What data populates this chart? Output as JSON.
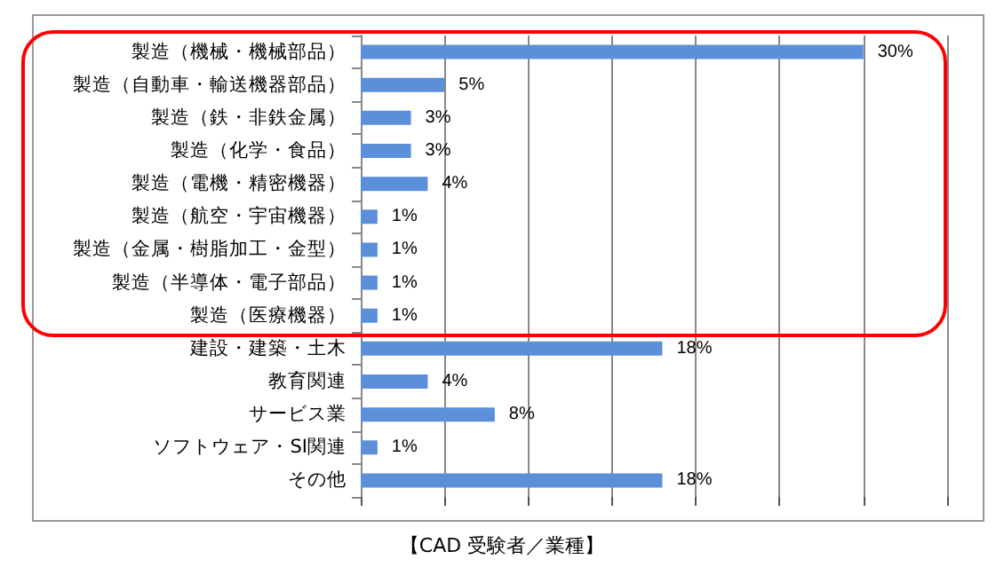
{
  "chart_data": {
    "type": "bar",
    "orientation": "horizontal",
    "categories": [
      "製造（機械・機械部品）",
      "製造（自動車・輸送機器部品）",
      "製造（鉄・非鉄金属）",
      "製造（化学・食品）",
      "製造（電機・精密機器）",
      "製造（航空・宇宙機器）",
      "製造（金属・樹脂加工・金型）",
      "製造（半導体・電子部品）",
      "製造（医療機器）",
      "建設・建築・土木",
      "教育関連",
      "サービス業",
      "ソフトウェア・SI関連",
      "その他"
    ],
    "values": [
      30,
      5,
      3,
      3,
      4,
      1,
      1,
      1,
      1,
      18,
      4,
      8,
      1,
      18
    ],
    "value_labels": [
      "30%",
      "5%",
      "3%",
      "3%",
      "4%",
      "1%",
      "1%",
      "1%",
      "1%",
      "18%",
      "4%",
      "8%",
      "1%",
      "18%"
    ],
    "color": "#5b8fd9",
    "xlim": [
      0,
      35
    ],
    "xticks": [
      {
        "value": 0,
        "label": null
      },
      {
        "value": 5,
        "label": null
      },
      {
        "value": 10,
        "label": null
      },
      {
        "value": 15,
        "label": null
      },
      {
        "value": 20,
        "label": null
      },
      {
        "value": 25,
        "label": null
      },
      {
        "value": 30,
        "label": null
      },
      {
        "value": 35,
        "label": null
      }
    ],
    "tick_labels": "y",
    "grid": "x",
    "annotations": [
      "【CAD 受験者／業種】"
    ]
  }
}
